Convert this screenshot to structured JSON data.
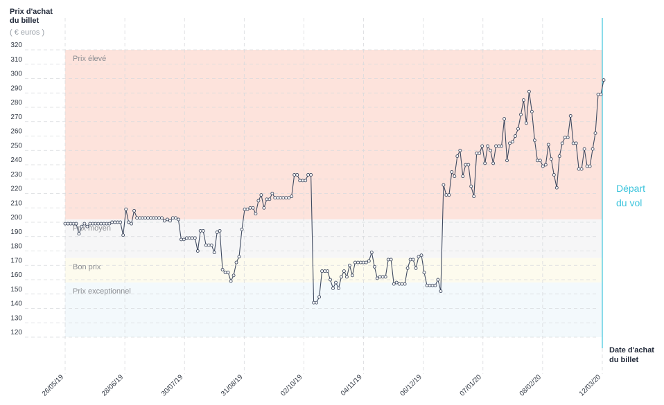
{
  "chart_data": {
    "type": "line",
    "ylabel": "Prix d'achat du billet",
    "yunit": "( € euros )",
    "xlabel": "Date d'achat du billet",
    "ylim": [
      120,
      320
    ],
    "yticks": [
      120,
      130,
      140,
      150,
      160,
      170,
      180,
      190,
      200,
      210,
      220,
      230,
      240,
      250,
      260,
      270,
      280,
      290,
      300,
      310,
      320
    ],
    "xticks": [
      "26/05/19",
      "28/06/19",
      "30/07/19",
      "31/08/19",
      "02/10/19",
      "04/11/19",
      "06/12/19",
      "07/01/20",
      "08/02/20",
      "12/03/20"
    ],
    "departure_label": "Départ du vol",
    "bands": [
      {
        "label": "Prix élevé",
        "from": 202,
        "to": 320,
        "color": "#fde3dc"
      },
      {
        "label": "Prix moyen",
        "from": 175,
        "to": 202,
        "color": "#f6f6f7"
      },
      {
        "label": "Bon prix",
        "from": 158,
        "to": 175,
        "color": "#fdfbee"
      },
      {
        "label": "Prix exceptionnel",
        "from": 120,
        "to": 158,
        "color": "#f3f9fc"
      }
    ],
    "line_color": "#3f4a60",
    "departure_color": "#3cc4dc",
    "series": [
      {
        "values": [
          199,
          199,
          199,
          199,
          199,
          192,
          197,
          199,
          197,
          199,
          199,
          199,
          199,
          199,
          199,
          199,
          199,
          200,
          200,
          200,
          200,
          191,
          209,
          200,
          199,
          208,
          203,
          203,
          203,
          203,
          203,
          203,
          203,
          203,
          203,
          203,
          201,
          202,
          201,
          203,
          203,
          202,
          188,
          188,
          189,
          189,
          189,
          189,
          180,
          194,
          194,
          184,
          184,
          184,
          179,
          193,
          194,
          167,
          165,
          165,
          159,
          163,
          172,
          176,
          195,
          209,
          209,
          210,
          210,
          206,
          215,
          219,
          210,
          216,
          216,
          220,
          217,
          217,
          217,
          217,
          217,
          217,
          218,
          233,
          233,
          229,
          229,
          229,
          233,
          233,
          144,
          144,
          148,
          166,
          166,
          166,
          160,
          154,
          158,
          154,
          162,
          166,
          162,
          170,
          163,
          172,
          172,
          172,
          172,
          172,
          173,
          179,
          169,
          161,
          162,
          162,
          162,
          174,
          174,
          157,
          158,
          157,
          157,
          157,
          168,
          174,
          174,
          168,
          176,
          177,
          165,
          156,
          156,
          156,
          156,
          160,
          152,
          226,
          219,
          219,
          235,
          232,
          246,
          250,
          232,
          240,
          240,
          225,
          218,
          248,
          248,
          253,
          241,
          253,
          250,
          241,
          253,
          253,
          253,
          272,
          243,
          255,
          256,
          260,
          265,
          275,
          285,
          269,
          291,
          277,
          257,
          243,
          243,
          239,
          240,
          254,
          244,
          233,
          224,
          246,
          255,
          259,
          259,
          274,
          255,
          255,
          237,
          237,
          251,
          239,
          239,
          251,
          262,
          289,
          289,
          299
        ]
      }
    ]
  }
}
